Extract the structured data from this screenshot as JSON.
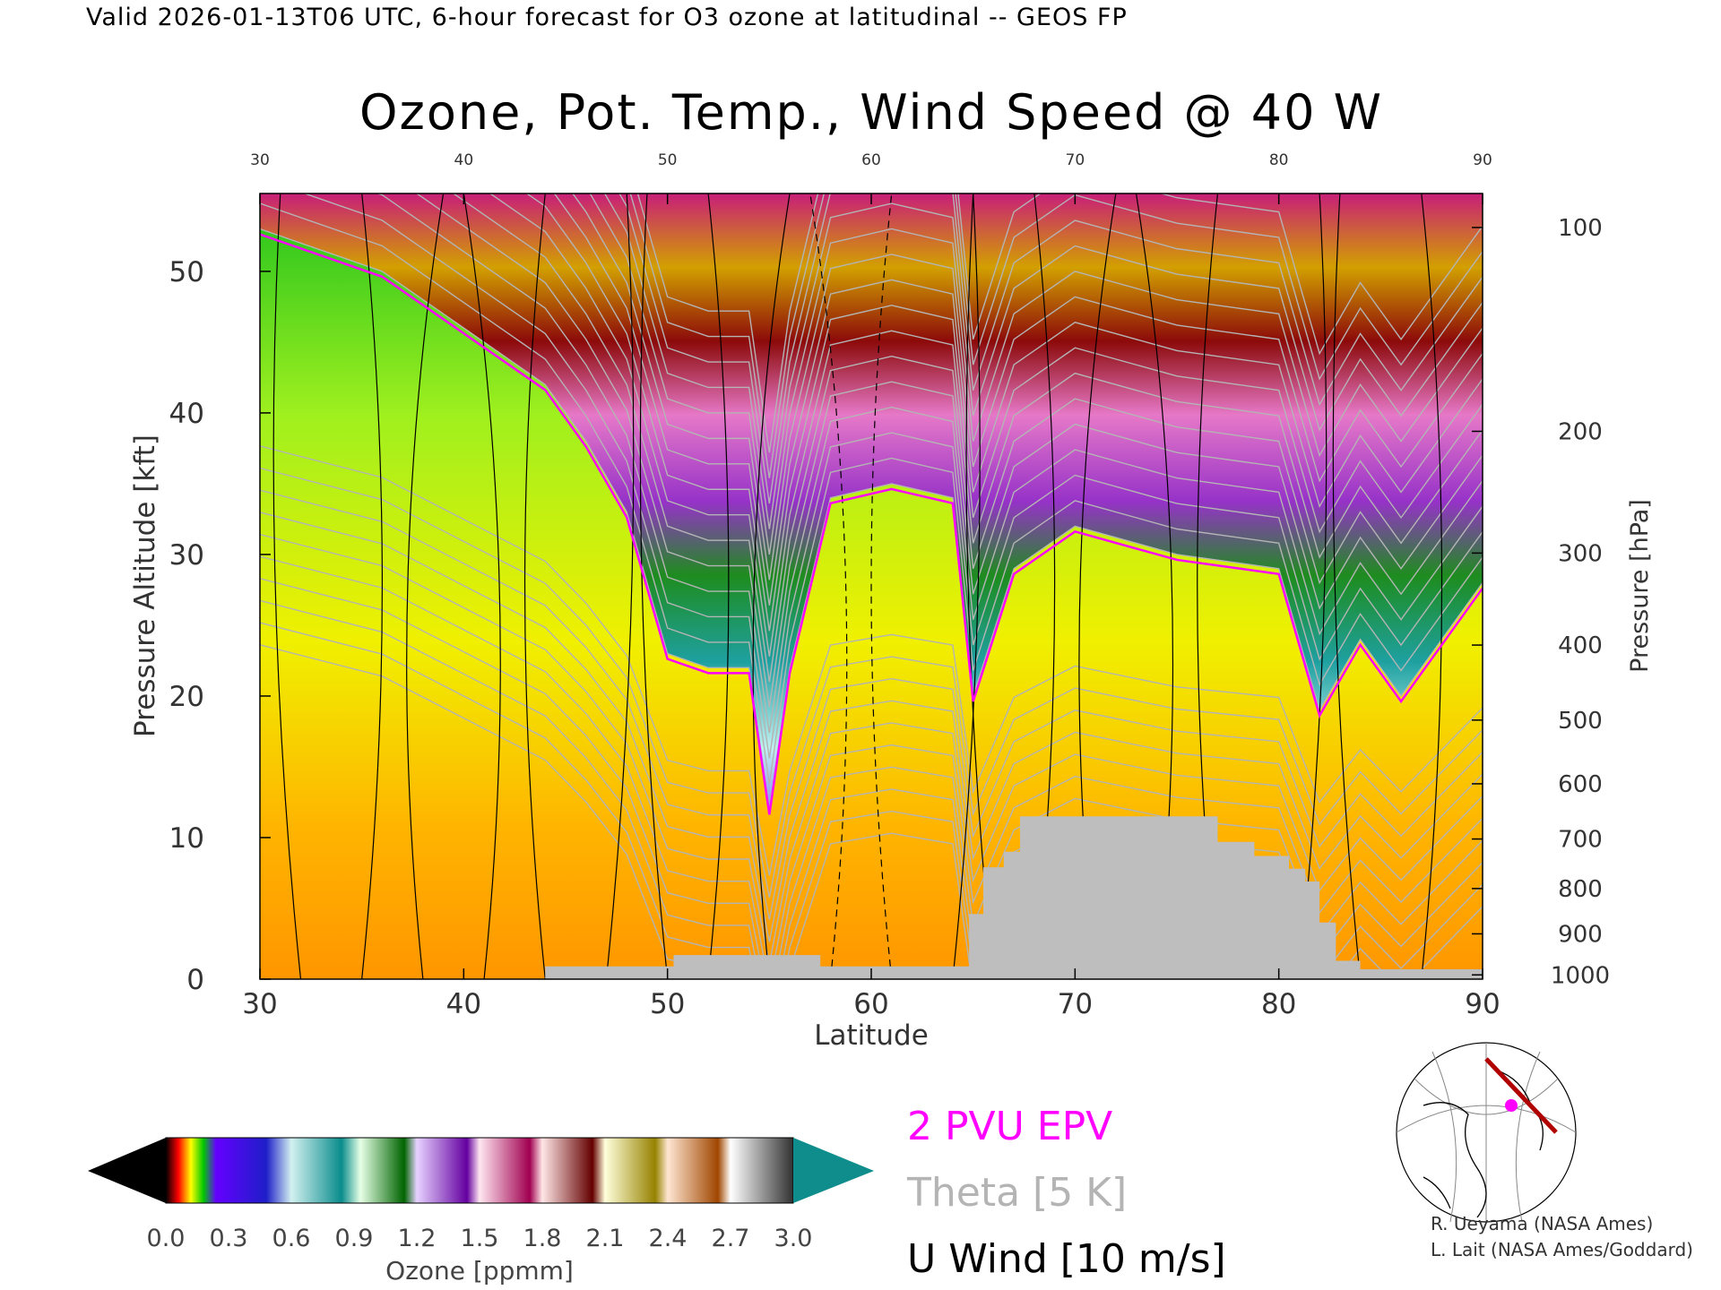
{
  "header": {
    "valid_line": "Valid 2026-01-13T06 UTC, 6-hour forecast for O3 ozone at latitudinal -- GEOS FP"
  },
  "chart_data": {
    "type": "heatmap",
    "title": "Ozone, Pot. Temp., Wind Speed @ 40 W",
    "xlabel": "Latitude",
    "ylabel": "Pressure Altitude [kft]",
    "y2label": "Pressure [hPa]",
    "xlim": [
      30,
      90
    ],
    "ylim": [
      0,
      55.5
    ],
    "x_ticks": [
      "30",
      "40",
      "50",
      "60",
      "70",
      "80",
      "90"
    ],
    "y_ticks": [
      "0",
      "10",
      "20",
      "30",
      "40",
      "50"
    ],
    "pressure_ticks": [
      {
        "hpa": "1000",
        "kft": 0.3
      },
      {
        "hpa": "900",
        "kft": 3.2
      },
      {
        "hpa": "800",
        "kft": 6.4
      },
      {
        "hpa": "700",
        "kft": 9.9
      },
      {
        "hpa": "600",
        "kft": 13.8
      },
      {
        "hpa": "500",
        "kft": 18.3
      },
      {
        "hpa": "400",
        "kft": 23.6
      },
      {
        "hpa": "300",
        "kft": 30.1
      },
      {
        "hpa": "200",
        "kft": 38.7
      },
      {
        "hpa": "100",
        "kft": 53.1
      }
    ],
    "ozone_colorbar": {
      "label": "Ozone [ppmm]",
      "ticks": [
        "0.0",
        "0.3",
        "0.6",
        "0.9",
        "1.2",
        "1.5",
        "1.8",
        "2.1",
        "2.4",
        "2.7",
        "3.0"
      ],
      "range": [
        0.0,
        3.0
      ],
      "under_color": "#000000",
      "over_color": "#0f8c8c"
    },
    "tropopause_profile_kft": [
      {
        "lat": 30,
        "kft": 53
      },
      {
        "lat": 36,
        "kft": 50
      },
      {
        "lat": 40,
        "kft": 46
      },
      {
        "lat": 44,
        "kft": 42
      },
      {
        "lat": 46,
        "kft": 38
      },
      {
        "lat": 48,
        "kft": 33
      },
      {
        "lat": 50,
        "kft": 23
      },
      {
        "lat": 52,
        "kft": 22
      },
      {
        "lat": 54,
        "kft": 22
      },
      {
        "lat": 55,
        "kft": 12
      },
      {
        "lat": 56,
        "kft": 22
      },
      {
        "lat": 58,
        "kft": 34
      },
      {
        "lat": 61,
        "kft": 35
      },
      {
        "lat": 64,
        "kft": 34
      },
      {
        "lat": 65,
        "kft": 20
      },
      {
        "lat": 67,
        "kft": 29
      },
      {
        "lat": 70,
        "kft": 32
      },
      {
        "lat": 75,
        "kft": 30
      },
      {
        "lat": 80,
        "kft": 29
      },
      {
        "lat": 82,
        "kft": 19
      },
      {
        "lat": 84,
        "kft": 24
      },
      {
        "lat": 86,
        "kft": 20
      },
      {
        "lat": 90,
        "kft": 28
      }
    ],
    "terrain_kft": [
      {
        "lat": 44.0,
        "kft": 0.9
      },
      {
        "lat": 50.3,
        "kft": 0.9
      },
      {
        "lat": 50.3,
        "kft": 1.7
      },
      {
        "lat": 57.5,
        "kft": 1.7
      },
      {
        "lat": 57.5,
        "kft": 0.9
      },
      {
        "lat": 64.8,
        "kft": 0.9
      },
      {
        "lat": 64.8,
        "kft": 4.6
      },
      {
        "lat": 65.5,
        "kft": 4.6
      },
      {
        "lat": 65.5,
        "kft": 7.9
      },
      {
        "lat": 66.5,
        "kft": 7.9
      },
      {
        "lat": 66.5,
        "kft": 9.0
      },
      {
        "lat": 67.3,
        "kft": 9.0
      },
      {
        "lat": 67.3,
        "kft": 11.5
      },
      {
        "lat": 77.0,
        "kft": 11.5
      },
      {
        "lat": 77.0,
        "kft": 9.7
      },
      {
        "lat": 78.8,
        "kft": 9.7
      },
      {
        "lat": 78.8,
        "kft": 8.7
      },
      {
        "lat": 80.5,
        "kft": 8.7
      },
      {
        "lat": 80.5,
        "kft": 7.8
      },
      {
        "lat": 81.3,
        "kft": 7.8
      },
      {
        "lat": 81.3,
        "kft": 6.9
      },
      {
        "lat": 82.0,
        "kft": 6.9
      },
      {
        "lat": 82.0,
        "kft": 4.0
      },
      {
        "lat": 82.8,
        "kft": 4.0
      },
      {
        "lat": 82.8,
        "kft": 1.3
      },
      {
        "lat": 84.0,
        "kft": 1.3
      },
      {
        "lat": 84.0,
        "kft": 0.7
      },
      {
        "lat": 90.0,
        "kft": 0.7
      }
    ],
    "series": [
      {
        "name": "2 PVU EPV",
        "color": "#ff00ff"
      },
      {
        "name": "Theta [5 K]",
        "color": "#b4b4b4"
      },
      {
        "name": "U Wind [10 m/s]",
        "color": "#000000"
      }
    ]
  },
  "legend": {
    "epv_label": "2 PVU EPV",
    "theta_label": "Theta [5 K]",
    "wind_label": "U Wind [10 m/s]"
  },
  "credits": {
    "line1": "R. Ueyama (NASA Ames)",
    "line2": "L. Lait (NASA Ames/Goddard)"
  },
  "colors": {
    "terrain": "#bebebe",
    "epv": "#ff00ff",
    "theta": "#b4b4b4",
    "wind": "#000000",
    "cross_section_line": "#b00000"
  }
}
